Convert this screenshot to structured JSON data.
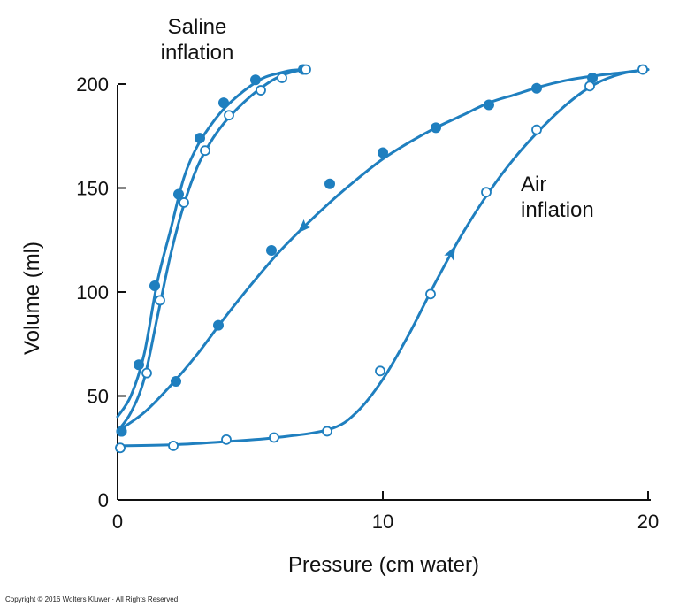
{
  "chart_data": {
    "type": "line",
    "title": "",
    "xlabel": "Pressure (cm water)",
    "ylabel": "Volume (ml)",
    "xlim": [
      0,
      20
    ],
    "ylim": [
      0,
      200
    ],
    "xticks": [
      0,
      10,
      20
    ],
    "yticks": [
      0,
      50,
      100,
      150,
      200
    ],
    "grid": false,
    "line_color": "#1f7fbf",
    "series": [
      {
        "group": "saline",
        "marker": "filled",
        "x": [
          0.15,
          0.8,
          1.4,
          2.3,
          3.1,
          4.0,
          5.2,
          7.0
        ],
        "y": [
          33,
          65,
          103,
          147,
          174,
          191,
          202,
          207
        ],
        "curve": [
          [
            0,
            40
          ],
          [
            0.5,
            50
          ],
          [
            1,
            70
          ],
          [
            1.5,
            105
          ],
          [
            2,
            130
          ],
          [
            2.5,
            155
          ],
          [
            3,
            170
          ],
          [
            3.5,
            180
          ],
          [
            4,
            188
          ],
          [
            4.5,
            194
          ],
          [
            5,
            199
          ],
          [
            5.5,
            203
          ],
          [
            6,
            205
          ],
          [
            6.5,
            206.5
          ],
          [
            7,
            207
          ]
        ]
      },
      {
        "group": "saline",
        "marker": "open",
        "x": [
          0.1,
          1.1,
          1.6,
          2.5,
          3.3,
          4.2,
          5.4,
          6.2,
          7.1
        ],
        "y": [
          25,
          61,
          96,
          143,
          168,
          185,
          197,
          203,
          207
        ],
        "curve": [
          [
            0,
            33
          ],
          [
            0.5,
            42
          ],
          [
            1,
            58
          ],
          [
            1.5,
            88
          ],
          [
            2,
            118
          ],
          [
            2.5,
            142
          ],
          [
            3,
            160
          ],
          [
            3.5,
            172
          ],
          [
            4,
            181
          ],
          [
            4.5,
            188
          ],
          [
            5,
            194
          ],
          [
            5.5,
            199
          ],
          [
            6,
            203
          ],
          [
            6.5,
            205.5
          ],
          [
            7,
            207
          ]
        ]
      },
      {
        "group": "air",
        "marker": "filled",
        "direction": "deflation",
        "x": [
          0.15,
          2.2,
          3.8,
          5.8,
          8.0,
          10.0,
          12.0,
          14.0,
          15.8,
          17.9
        ],
        "y": [
          33,
          57,
          84,
          120,
          152,
          167,
          179,
          190,
          198,
          203
        ],
        "curve": [
          [
            0,
            33
          ],
          [
            1,
            42
          ],
          [
            2,
            55
          ],
          [
            3,
            70
          ],
          [
            4,
            87
          ],
          [
            5,
            103
          ],
          [
            6,
            118
          ],
          [
            7,
            131
          ],
          [
            8,
            143
          ],
          [
            9,
            154
          ],
          [
            10,
            164
          ],
          [
            11,
            172
          ],
          [
            12,
            179
          ],
          [
            13,
            185
          ],
          [
            14,
            191
          ],
          [
            15,
            195
          ],
          [
            16,
            199
          ],
          [
            17,
            202
          ],
          [
            18,
            204
          ],
          [
            19,
            205.5
          ],
          [
            20,
            207
          ]
        ]
      },
      {
        "group": "air",
        "marker": "open",
        "direction": "inflation",
        "x": [
          0.1,
          2.1,
          4.1,
          5.9,
          7.9,
          9.9,
          11.8,
          13.9,
          15.8,
          17.8,
          19.8
        ],
        "y": [
          25,
          26,
          29,
          30,
          33,
          62,
          99,
          148,
          178,
          199,
          207
        ],
        "curve": [
          [
            0,
            26
          ],
          [
            2,
            26.5
          ],
          [
            4,
            28
          ],
          [
            6,
            30
          ],
          [
            8,
            34
          ],
          [
            9,
            42
          ],
          [
            10,
            58
          ],
          [
            11,
            80
          ],
          [
            12,
            105
          ],
          [
            13,
            128
          ],
          [
            14,
            148
          ],
          [
            15,
            165
          ],
          [
            16,
            179
          ],
          [
            17,
            191
          ],
          [
            18,
            200
          ],
          [
            19,
            205
          ],
          [
            20,
            207
          ]
        ]
      }
    ],
    "annotations": [
      {
        "text_lines": [
          "Saline",
          "inflation"
        ]
      },
      {
        "text_lines": [
          "Air",
          "inflation"
        ]
      }
    ],
    "arrows": [
      {
        "series_index": 2,
        "x": 7.0,
        "y": 131,
        "points_toward": "lower-left"
      },
      {
        "series_index": 3,
        "x": 12.6,
        "y": 119,
        "points_toward": "upper-right"
      }
    ]
  },
  "footer": {
    "copyright": "Copyright © 2016 Wolters Kluwer · All Rights Reserved"
  }
}
